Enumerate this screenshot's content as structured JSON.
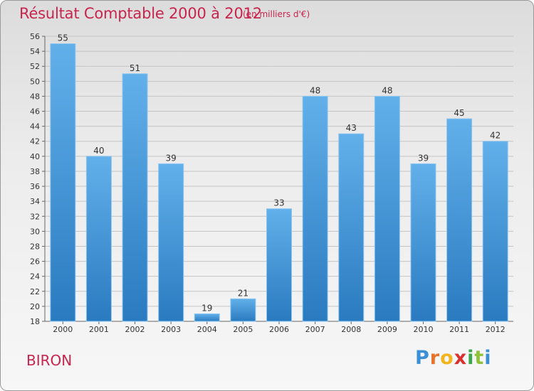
{
  "title": "Résultat Comptable 2000 à 2012",
  "subtitle": "(en milliers d'€)",
  "place_name": "BIRON",
  "logo": {
    "letters": [
      "P",
      "r",
      "o",
      "x",
      "i",
      "t",
      "i"
    ],
    "colors": [
      "#3a8fd6",
      "#e8732a",
      "#f2b51e",
      "#d9322e",
      "#3aa84a",
      "#8fc23a",
      "#3a8fd6"
    ]
  },
  "colors": {
    "bar_top": "#62b0ea",
    "bar_bottom": "#2a7ac0",
    "accent": "#c8254e"
  },
  "chart_data": {
    "type": "bar",
    "title": "Résultat Comptable 2000 à 2012",
    "subtitle": "(en milliers d'€)",
    "xlabel": "",
    "ylabel": "",
    "categories": [
      "2000",
      "2001",
      "2002",
      "2003",
      "2004",
      "2005",
      "2006",
      "2007",
      "2008",
      "2009",
      "2010",
      "2011",
      "2012"
    ],
    "values": [
      55,
      40,
      51,
      39,
      19,
      21,
      33,
      48,
      43,
      48,
      39,
      45,
      42
    ],
    "ylim": [
      18,
      56
    ],
    "yticks": [
      18,
      20,
      22,
      24,
      26,
      28,
      30,
      32,
      34,
      36,
      38,
      40,
      42,
      44,
      46,
      48,
      50,
      52,
      54,
      56
    ],
    "grid": true,
    "legend": "none"
  }
}
